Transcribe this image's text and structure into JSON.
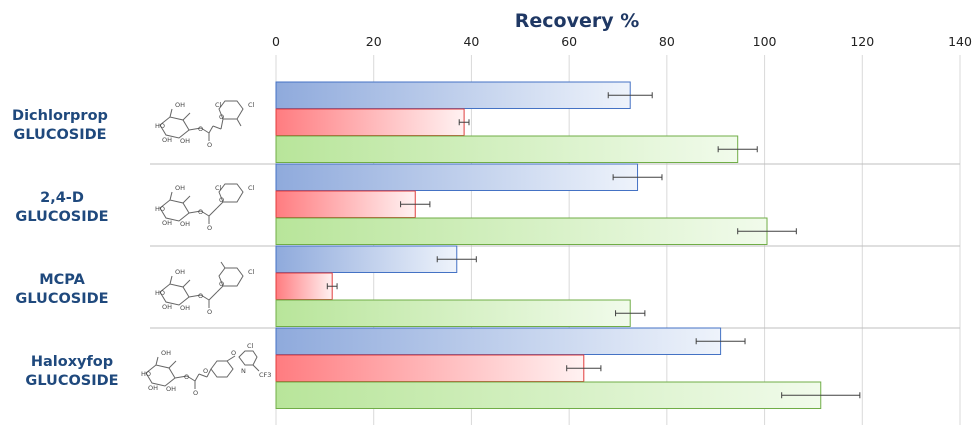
{
  "chart_data": {
    "type": "bar",
    "orientation": "horizontal",
    "title": "Recovery %",
    "xlim": [
      0,
      140
    ],
    "x_ticks": [
      "0",
      "20",
      "40",
      "60",
      "80",
      "100",
      "120",
      "140"
    ],
    "x_axis_position": "top",
    "grid": true,
    "legend": "none",
    "categories": [
      [
        "Dichlorprop",
        "GLUCOSIDE"
      ],
      [
        "2,4-D",
        "GLUCOSIDE"
      ],
      [
        "MCPA",
        "GLUCOSIDE"
      ],
      [
        "Haloxyfop",
        "GLUCOSIDE"
      ]
    ],
    "series": [
      {
        "color": "#8faadc",
        "values": [
          72.5,
          74,
          37,
          91
        ],
        "errors": [
          4.5,
          5,
          4,
          5
        ]
      },
      {
        "color": "#ff7c80",
        "values": [
          38.5,
          28.5,
          11.5,
          63
        ],
        "errors": [
          1,
          3,
          1,
          3.5
        ]
      },
      {
        "color": "#a9d18e",
        "values": [
          94.5,
          100.5,
          72.5,
          111.5
        ],
        "errors": [
          4,
          6,
          3,
          8
        ]
      }
    ]
  },
  "molecules": [
    {
      "name": "dichlorprop-glucoside-structure",
      "labels": [
        "OH",
        "HO",
        "OH",
        "OH",
        "Cl",
        "Cl",
        "O",
        "O",
        "O"
      ]
    },
    {
      "name": "2-4-d-glucoside-structure",
      "labels": [
        "OH",
        "HO",
        "OH",
        "OH",
        "Cl",
        "Cl",
        "O",
        "O",
        "O"
      ]
    },
    {
      "name": "mcpa-glucoside-structure",
      "labels": [
        "OH",
        "HO",
        "OH",
        "OH",
        "Cl",
        "O",
        "O",
        "O"
      ]
    },
    {
      "name": "haloxyfop-glucoside-structure",
      "labels": [
        "OH",
        "HO",
        "OH",
        "OH",
        "Cl",
        "N",
        "CF3",
        "O",
        "O",
        "O",
        "O"
      ]
    }
  ]
}
